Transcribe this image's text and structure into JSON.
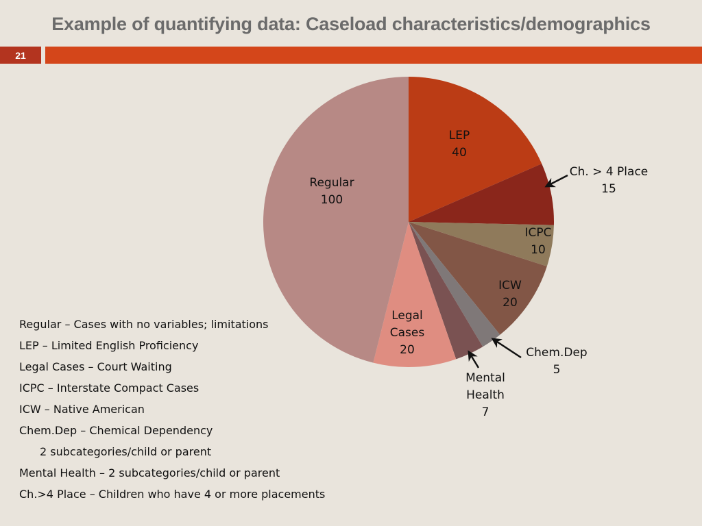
{
  "slide": {
    "title": "Example of quantifying data: Caseload characteristics/demographics",
    "number": "21",
    "colors": {
      "accent": "#d4461a",
      "number_box": "#b3341f",
      "background": "#e9e4dc",
      "title": "#6b6b6b"
    }
  },
  "chart_data": {
    "type": "pie",
    "title": "",
    "slices": [
      {
        "name": "LEP",
        "label_lines": [
          "LEP",
          "40"
        ],
        "value": 40,
        "color": "#bb3c15"
      },
      {
        "name": "Ch. > 4 Place",
        "label_lines": [
          "Ch. > 4 Place",
          "15"
        ],
        "value": 15,
        "color": "#8a261b"
      },
      {
        "name": "ICPC",
        "label_lines": [
          "ICPC",
          "10"
        ],
        "value": 10,
        "color": "#8f7a5b"
      },
      {
        "name": "ICW",
        "label_lines": [
          "ICW",
          "20"
        ],
        "value": 20,
        "color": "#825646"
      },
      {
        "name": "Chem.Dep",
        "label_lines": [
          "Chem.Dep",
          "5"
        ],
        "value": 5,
        "color": "#7f7878"
      },
      {
        "name": "Mental Health",
        "label_lines": [
          "Mental",
          "Health",
          "7"
        ],
        "value": 7,
        "color": "#7a5252"
      },
      {
        "name": "Legal Cases",
        "label_lines": [
          "Legal",
          "Cases",
          "20"
        ],
        "value": 20,
        "color": "#df8d81"
      },
      {
        "name": "Regular",
        "label_lines": [
          "Regular",
          "100"
        ],
        "value": 100,
        "color": "#b78985"
      }
    ]
  },
  "legend_notes": [
    "Regular – Cases with no variables; limitations",
    "LEP – Limited English Proficiency",
    "Legal Cases – Court Waiting",
    "ICPC – Interstate  Compact Cases",
    "ICW – Native American",
    "Chem.Dep – Chemical Dependency",
    "2 subcategories/child or parent",
    "Mental Health – 2 subcategories/child or parent",
    "Ch.>4 Place – Children who have 4 or more placements"
  ]
}
